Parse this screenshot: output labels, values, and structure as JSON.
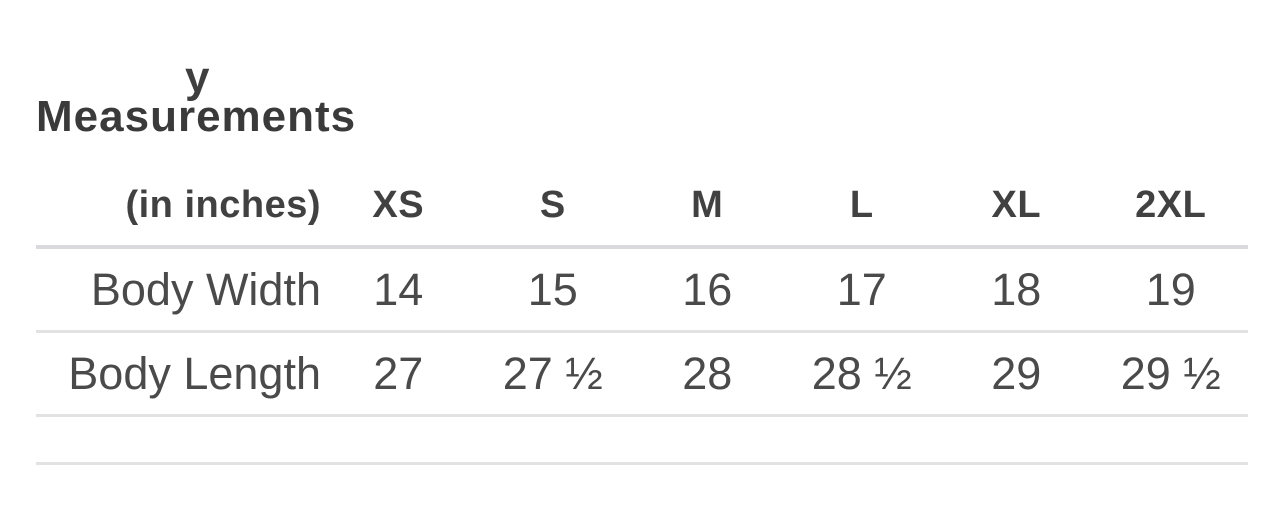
{
  "page": {
    "truncated_text_fragment": "y"
  },
  "section": {
    "title": "Measurements"
  },
  "table": {
    "unit_label": "(in inches)",
    "columns": [
      "XS",
      "S",
      "M",
      "L",
      "XL",
      "2XL"
    ],
    "rows": [
      {
        "label": "Body Width",
        "values": [
          "14",
          "15",
          "16",
          "17",
          "18",
          "19"
        ]
      },
      {
        "label": "Body Length",
        "values": [
          "27",
          "27 ½",
          "28",
          "28 ½",
          "29",
          "29 ½"
        ]
      }
    ]
  },
  "colors": {
    "heading_text": "#3a3a3a",
    "header_text": "#414141",
    "body_text": "#4a4a4a",
    "header_rule": "#d9d9de",
    "row_rule": "#e2e2e3",
    "background": "#ffffff"
  },
  "chart_data": {
    "type": "table",
    "title": "Measurements",
    "unit": "inches",
    "categories": [
      "XS",
      "S",
      "M",
      "L",
      "XL",
      "2XL"
    ],
    "series": [
      {
        "name": "Body Width",
        "values": [
          14,
          15,
          16,
          17,
          18,
          19
        ]
      },
      {
        "name": "Body Length",
        "values": [
          27,
          27.5,
          28,
          28.5,
          29,
          29.5
        ]
      }
    ]
  }
}
